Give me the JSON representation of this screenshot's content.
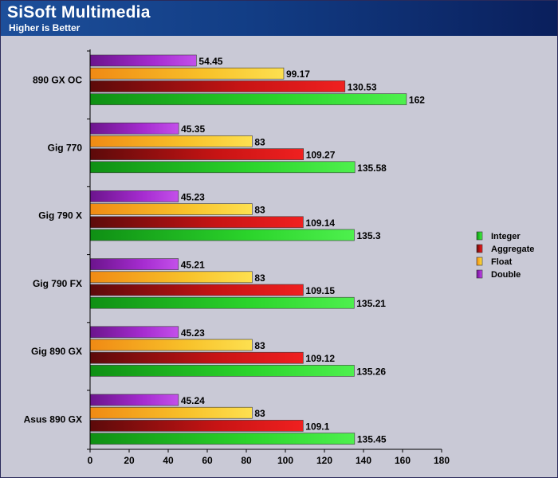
{
  "header": {
    "title": "SiSoft Multimedia",
    "subtitle": "Higher is Better"
  },
  "chart_data": {
    "type": "bar",
    "orientation": "horizontal",
    "title": "SiSoft Multimedia",
    "subtitle": "Higher is Better",
    "xlabel": "",
    "ylabel": "",
    "xlim": [
      0,
      180
    ],
    "x_ticks": [
      0,
      20,
      40,
      60,
      80,
      100,
      120,
      140,
      160,
      180
    ],
    "grid": false,
    "legend_position": "right",
    "categories": [
      "890 GX OC",
      "Gig 770",
      "Gig 790 X",
      "Gig 790 FX",
      "Gig 890 GX",
      "Asus 890 GX"
    ],
    "series": [
      {
        "name": "Integer",
        "color": "#22c322",
        "values": [
          162,
          135.58,
          135.3,
          135.21,
          135.26,
          135.45
        ],
        "labels": [
          "162",
          "135.58",
          "135.3",
          "135.21",
          "135.26",
          "135.45"
        ]
      },
      {
        "name": "Aggregate",
        "color": "#d41414",
        "values": [
          130.53,
          109.27,
          109.14,
          109.15,
          109.12,
          109.1
        ],
        "labels": [
          "130.53",
          "109.27",
          "109.14",
          "109.15",
          "109.12",
          "109.1"
        ]
      },
      {
        "name": "Float",
        "color": "#f7b41c",
        "values": [
          99.17,
          83,
          83,
          83,
          83,
          83
        ],
        "labels": [
          "99.17",
          "83",
          "83",
          "83",
          "83",
          "83"
        ]
      },
      {
        "name": "Double",
        "color": "#a324c8",
        "values": [
          54.45,
          45.35,
          45.23,
          45.21,
          45.23,
          45.24
        ],
        "labels": [
          "54.45",
          "45.35",
          "45.23",
          "45.21",
          "45.23",
          "45.24"
        ]
      }
    ]
  }
}
